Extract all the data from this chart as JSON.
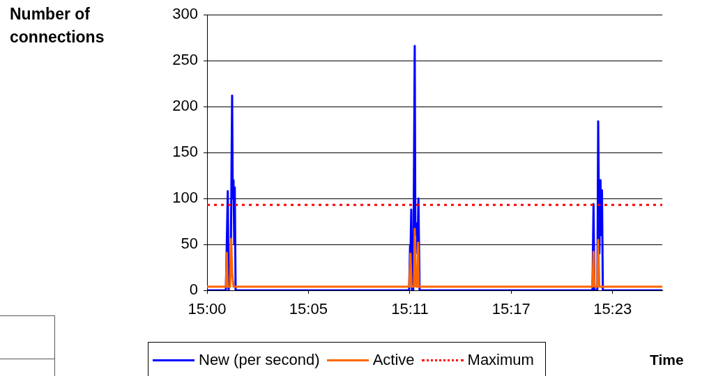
{
  "chart_data": {
    "type": "line",
    "ylabel": "Number of connections",
    "xlabel": "Time",
    "xlim": [
      14.995,
      15.4253
    ],
    "xticks": [
      {
        "value": 14.995,
        "label": "15:00"
      },
      {
        "value": 15.0908,
        "label": "15:05"
      },
      {
        "value": 15.1867,
        "label": "15:11"
      },
      {
        "value": 15.2825,
        "label": "15:17"
      },
      {
        "value": 15.3783,
        "label": "15:23"
      }
    ],
    "ylim": [
      0,
      300
    ],
    "yticks": [
      0,
      50,
      100,
      150,
      200,
      250,
      300
    ],
    "grid": "y",
    "legend": "bottom",
    "marker": "none",
    "series": [
      {
        "name": "New (per second)",
        "color": "#0000ff",
        "line_style": "solid",
        "x": [
          14.995,
          15.0128,
          15.0146,
          15.0154,
          15.0174,
          15.0187,
          15.0193,
          15.02,
          15.0207,
          15.0212,
          15.022,
          15.186,
          15.1869,
          15.1873,
          15.188,
          15.1887,
          15.1899,
          15.1913,
          15.1919,
          15.1934,
          15.1939,
          15.1948,
          15.1959,
          15.3593,
          15.3603,
          15.3612,
          15.3639,
          15.3647,
          15.3658,
          15.3669,
          15.3675,
          15.3683,
          15.3691,
          15.4253
        ],
        "values": [
          0,
          0,
          108,
          0,
          30,
          212,
          100,
          120,
          50,
          112,
          0,
          0,
          49,
          40,
          88,
          0,
          0,
          266,
          60,
          73,
          40,
          100,
          0,
          0,
          94,
          0,
          0,
          184,
          40,
          120,
          60,
          109,
          0,
          0
        ]
      },
      {
        "name": "Active",
        "color": "#ff6600",
        "line_style": "solid",
        "x": [
          14.995,
          15.0128,
          15.0137,
          15.0145,
          15.0168,
          15.0178,
          15.0187,
          15.0193,
          15.02,
          15.186,
          15.1873,
          15.1883,
          15.1906,
          15.1913,
          15.1926,
          15.1939,
          15.1945,
          15.1952,
          15.3593,
          15.3603,
          15.3612,
          15.3639,
          15.3647,
          15.3658,
          15.4253
        ],
        "values": [
          4,
          4,
          41,
          4,
          4,
          56,
          20,
          12,
          4,
          4,
          40,
          4,
          4,
          67,
          4,
          4,
          52,
          4,
          4,
          42,
          4,
          4,
          55,
          4,
          4
        ]
      },
      {
        "name": "Maximum",
        "color": "#ff0000",
        "line_style": "dotted",
        "x": [
          14.995,
          15.4253
        ],
        "values": [
          93,
          93
        ]
      }
    ]
  }
}
